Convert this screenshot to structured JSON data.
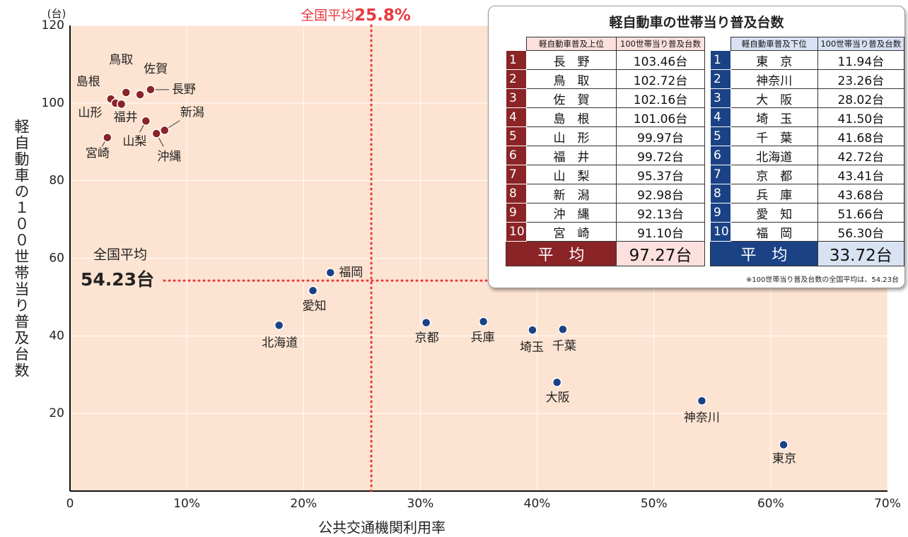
{
  "chart_data": {
    "type": "scatter",
    "x_label": "公共交通機関利用率",
    "y_label": "軽自動車の１００世帯当り普及台数",
    "y_unit": "(台)",
    "xlim": [
      0,
      70
    ],
    "xticks": [
      0,
      {
        "value": 10,
        "label": "10%"
      },
      {
        "value": 20,
        "label": "20%"
      },
      {
        "value": 30,
        "label": "30%"
      },
      {
        "value": 40,
        "label": "40%"
      },
      {
        "value": 50,
        "label": "50%"
      },
      {
        "value": 60,
        "label": "60%"
      },
      {
        "value": 70,
        "label": "70%"
      }
    ],
    "ylim": [
      0,
      120
    ],
    "yticks": [
      20,
      40,
      60,
      80,
      100,
      120
    ],
    "grid": true,
    "series": [
      {
        "color": "#8b2427",
        "labels": [
          "長野",
          "鳥取",
          "佐賀",
          "島根",
          "山形",
          "福井",
          "山梨",
          "新潟",
          "沖縄",
          "宮崎"
        ],
        "x": [
          6.9,
          4.8,
          6.0,
          3.5,
          3.9,
          4.4,
          6.5,
          8.1,
          7.4,
          3.2
        ],
        "values": [
          103.46,
          102.72,
          102.16,
          101.06,
          99.97,
          99.72,
          95.37,
          92.98,
          92.13,
          91.1
        ]
      },
      {
        "color": "#1b4285",
        "labels": [
          "東京",
          "神奈川",
          "大阪",
          "埼玉",
          "千葉",
          "北海道",
          "京都",
          "兵庫",
          "愛知",
          "福岡"
        ],
        "x": [
          61.1,
          54.1,
          41.7,
          39.6,
          42.2,
          17.9,
          30.5,
          35.4,
          20.8,
          22.3
        ],
        "values": [
          11.94,
          23.26,
          28.02,
          41.5,
          41.68,
          42.72,
          43.41,
          43.68,
          51.66,
          56.3
        ]
      }
    ],
    "reference_lines": [
      {
        "axis": "x",
        "value": 25.8,
        "label": "全国平均",
        "value_label": "25.8%"
      },
      {
        "axis": "y",
        "value": 54.23,
        "label": "全国平均",
        "value_label": "54.23台"
      }
    ],
    "ref_color": "#e8383d"
  },
  "table": {
    "title": "軽自動車の世帯当り普及台数",
    "top": {
      "headers": [
        "軽自動車普及上位",
        "100世帯当り普及台数"
      ],
      "rows": [
        [
          "1",
          "長　野",
          "103.46台"
        ],
        [
          "2",
          "鳥　取",
          "102.72台"
        ],
        [
          "3",
          "佐　賀",
          "102.16台"
        ],
        [
          "4",
          "島　根",
          "101.06台"
        ],
        [
          "5",
          "山　形",
          "99.97台"
        ],
        [
          "6",
          "福　井",
          "99.72台"
        ],
        [
          "7",
          "山　梨",
          "95.37台"
        ],
        [
          "8",
          "新　潟",
          "92.98台"
        ],
        [
          "9",
          "沖　縄",
          "92.13台"
        ],
        [
          "10",
          "宮　崎",
          "91.10台"
        ]
      ],
      "average": [
        "平　均",
        "97.27台"
      ]
    },
    "bottom": {
      "headers": [
        "軽自動車普及下位",
        "100世帯当り普及台数"
      ],
      "rows": [
        [
          "1",
          "東　京",
          "11.94台"
        ],
        [
          "2",
          "神奈川",
          "23.26台"
        ],
        [
          "3",
          "大　阪",
          "28.02台"
        ],
        [
          "4",
          "埼　玉",
          "41.50台"
        ],
        [
          "5",
          "千　葉",
          "41.68台"
        ],
        [
          "6",
          "北海道",
          "42.72台"
        ],
        [
          "7",
          "京　都",
          "43.41台"
        ],
        [
          "8",
          "兵　庫",
          "43.68台"
        ],
        [
          "9",
          "愛　知",
          "51.66台"
        ],
        [
          "10",
          "福　岡",
          "56.30台"
        ]
      ],
      "average": [
        "平　均",
        "33.72台"
      ]
    },
    "note": "※100世帯当り普及台数の全国平均は、54.23台"
  }
}
